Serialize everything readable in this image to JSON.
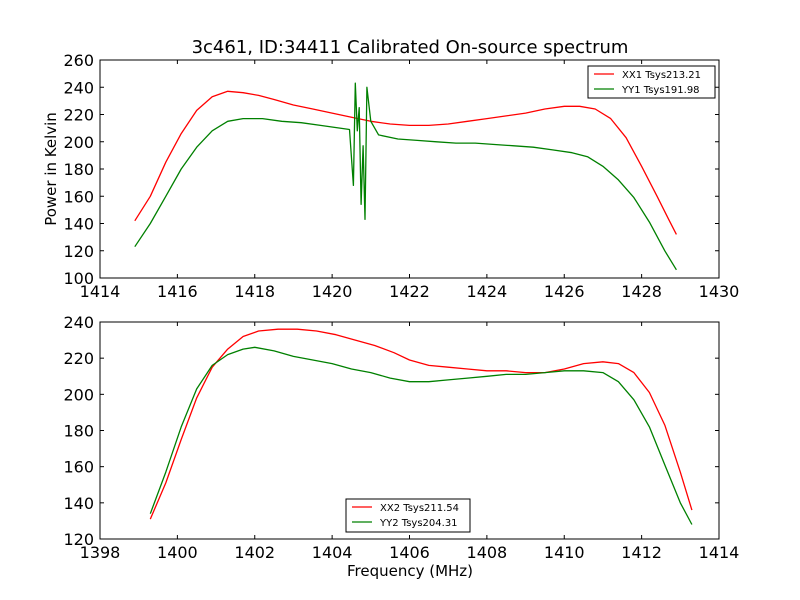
{
  "figure": {
    "title": "3c461, ID:34411 Calibrated On-source spectrum",
    "background": "#ffffff"
  },
  "chart_data": [
    {
      "type": "line",
      "title": "3c461, ID:34411 Calibrated On-source spectrum",
      "xlabel": "",
      "ylabel": "Power in Kelvin",
      "xlim": [
        1414,
        1430
      ],
      "ylim": [
        100,
        260
      ],
      "xticks": [
        1414,
        1416,
        1418,
        1420,
        1422,
        1424,
        1426,
        1428,
        1430
      ],
      "yticks": [
        100,
        120,
        140,
        160,
        180,
        200,
        220,
        240,
        260
      ],
      "legend": "top-right",
      "grid": false,
      "series": [
        {
          "name": "XX1 Tsys213.21",
          "color": "#ff0000",
          "points": [
            [
              1414.9,
              142
            ],
            [
              1415.3,
              160
            ],
            [
              1415.7,
              185
            ],
            [
              1416.1,
              206
            ],
            [
              1416.5,
              223
            ],
            [
              1416.9,
              233
            ],
            [
              1417.3,
              237
            ],
            [
              1417.7,
              236
            ],
            [
              1418.1,
              234
            ],
            [
              1418.5,
              231
            ],
            [
              1419.0,
              227
            ],
            [
              1419.5,
              224
            ],
            [
              1420.0,
              221
            ],
            [
              1420.5,
              218
            ],
            [
              1421.0,
              215
            ],
            [
              1421.5,
              213
            ],
            [
              1422.0,
              212
            ],
            [
              1422.5,
              212
            ],
            [
              1423.0,
              213
            ],
            [
              1423.5,
              215
            ],
            [
              1424.0,
              217
            ],
            [
              1424.5,
              219
            ],
            [
              1425.0,
              221
            ],
            [
              1425.5,
              224
            ],
            [
              1426.0,
              226
            ],
            [
              1426.4,
              226
            ],
            [
              1426.8,
              224
            ],
            [
              1427.2,
              217
            ],
            [
              1427.6,
              203
            ],
            [
              1428.0,
              182
            ],
            [
              1428.4,
              160
            ],
            [
              1428.7,
              143
            ],
            [
              1428.9,
              132
            ]
          ]
        },
        {
          "name": "YY1 Tsys191.98",
          "color": "#008000",
          "points": [
            [
              1414.9,
              123
            ],
            [
              1415.3,
              140
            ],
            [
              1415.7,
              160
            ],
            [
              1416.1,
              180
            ],
            [
              1416.5,
              196
            ],
            [
              1416.9,
              208
            ],
            [
              1417.3,
              215
            ],
            [
              1417.7,
              217
            ],
            [
              1418.2,
              217
            ],
            [
              1418.7,
              215
            ],
            [
              1419.2,
              214
            ],
            [
              1419.7,
              212
            ],
            [
              1420.2,
              210
            ],
            [
              1420.45,
              209
            ],
            [
              1420.55,
              168
            ],
            [
              1420.6,
              243
            ],
            [
              1420.65,
              208
            ],
            [
              1420.7,
              225
            ],
            [
              1420.75,
              154
            ],
            [
              1420.8,
              197
            ],
            [
              1420.85,
              143
            ],
            [
              1420.9,
              240
            ],
            [
              1421.0,
              215
            ],
            [
              1421.2,
              205
            ],
            [
              1421.7,
              202
            ],
            [
              1422.2,
              201
            ],
            [
              1422.7,
              200
            ],
            [
              1423.2,
              199
            ],
            [
              1423.7,
              199
            ],
            [
              1424.2,
              198
            ],
            [
              1424.7,
              197
            ],
            [
              1425.2,
              196
            ],
            [
              1425.7,
              194
            ],
            [
              1426.2,
              192
            ],
            [
              1426.6,
              189
            ],
            [
              1427.0,
              182
            ],
            [
              1427.4,
              172
            ],
            [
              1427.8,
              159
            ],
            [
              1428.2,
              141
            ],
            [
              1428.6,
              120
            ],
            [
              1428.9,
              106
            ]
          ]
        }
      ]
    },
    {
      "type": "line",
      "title": "",
      "xlabel": "Frequency (MHz)",
      "ylabel": "",
      "xlim": [
        1398,
        1414
      ],
      "ylim": [
        120,
        240
      ],
      "xticks": [
        1398,
        1400,
        1402,
        1404,
        1406,
        1408,
        1410,
        1412,
        1414
      ],
      "yticks": [
        120,
        140,
        160,
        180,
        200,
        220,
        240
      ],
      "legend": "bottom-center",
      "grid": false,
      "series": [
        {
          "name": "XX2 Tsys211.54",
          "color": "#ff0000",
          "points": [
            [
              1399.3,
              131
            ],
            [
              1399.7,
              151
            ],
            [
              1400.1,
              175
            ],
            [
              1400.5,
              198
            ],
            [
              1400.9,
              215
            ],
            [
              1401.3,
              225
            ],
            [
              1401.7,
              232
            ],
            [
              1402.1,
              235
            ],
            [
              1402.6,
              236
            ],
            [
              1403.1,
              236
            ],
            [
              1403.6,
              235
            ],
            [
              1404.1,
              233
            ],
            [
              1404.6,
              230
            ],
            [
              1405.1,
              227
            ],
            [
              1405.6,
              223
            ],
            [
              1406.0,
              219
            ],
            [
              1406.5,
              216
            ],
            [
              1407.0,
              215
            ],
            [
              1407.5,
              214
            ],
            [
              1408.0,
              213
            ],
            [
              1408.5,
              213
            ],
            [
              1409.0,
              212
            ],
            [
              1409.5,
              212
            ],
            [
              1410.0,
              214
            ],
            [
              1410.5,
              217
            ],
            [
              1411.0,
              218
            ],
            [
              1411.4,
              217
            ],
            [
              1411.8,
              212
            ],
            [
              1412.2,
              201
            ],
            [
              1412.6,
              183
            ],
            [
              1413.0,
              157
            ],
            [
              1413.3,
              136
            ]
          ]
        },
        {
          "name": "YY2 Tsys204.31",
          "color": "#008000",
          "points": [
            [
              1399.3,
              134
            ],
            [
              1399.7,
              157
            ],
            [
              1400.1,
              182
            ],
            [
              1400.5,
              203
            ],
            [
              1400.9,
              216
            ],
            [
              1401.3,
              222
            ],
            [
              1401.7,
              225
            ],
            [
              1402.0,
              226
            ],
            [
              1402.5,
              224
            ],
            [
              1403.0,
              221
            ],
            [
              1403.5,
              219
            ],
            [
              1404.0,
              217
            ],
            [
              1404.5,
              214
            ],
            [
              1405.0,
              212
            ],
            [
              1405.5,
              209
            ],
            [
              1406.0,
              207
            ],
            [
              1406.5,
              207
            ],
            [
              1407.0,
              208
            ],
            [
              1407.5,
              209
            ],
            [
              1408.0,
              210
            ],
            [
              1408.5,
              211
            ],
            [
              1409.0,
              211
            ],
            [
              1409.5,
              212
            ],
            [
              1410.0,
              213
            ],
            [
              1410.5,
              213
            ],
            [
              1411.0,
              212
            ],
            [
              1411.4,
              207
            ],
            [
              1411.8,
              197
            ],
            [
              1412.2,
              182
            ],
            [
              1412.6,
              161
            ],
            [
              1413.0,
              140
            ],
            [
              1413.3,
              128
            ]
          ]
        }
      ]
    }
  ]
}
